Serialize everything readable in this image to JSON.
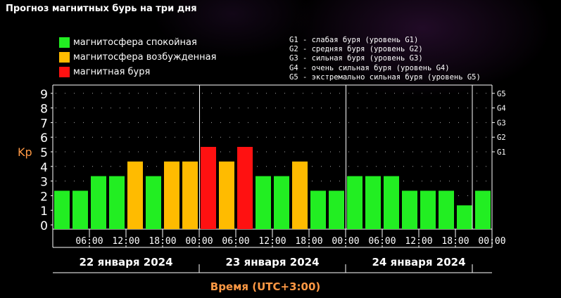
{
  "title": "Прогноз магнитных бурь на три дня",
  "legend": {
    "items": [
      {
        "label": "магнитосфера спокойная",
        "color": "#22ee22"
      },
      {
        "label": "магнитосфера возбужденная",
        "color": "#ffbb00"
      },
      {
        "label": "магнитная буря",
        "color": "#ff1111"
      }
    ],
    "storm_levels": [
      "G1 - слабая буря (уровень G1)",
      "G2 - средняя буря (уровень G2)",
      "G3 - сильная буря (уровень G3)",
      "G4 - очень сильная буря (уровень G4)",
      "G5 - экстремально сильная буря (уровень G5)"
    ]
  },
  "chart_data": {
    "type": "bar",
    "ylabel": "Kp",
    "xlabel": "Время (UTC+3:00)",
    "ylim": [
      0,
      9
    ],
    "yticks": [
      "0",
      "1",
      "2",
      "3",
      "4",
      "5",
      "6",
      "7",
      "8",
      "9"
    ],
    "g_levels": [
      {
        "label": "G1",
        "kp": 5
      },
      {
        "label": "G2",
        "kp": 6
      },
      {
        "label": "G3",
        "kp": 7
      },
      {
        "label": "G4",
        "kp": 8
      },
      {
        "label": "G5",
        "kp": 9
      }
    ],
    "days": [
      "22 января 2024",
      "23 января 2024",
      "24 января 2024"
    ],
    "time_ticks": [
      "06:00",
      "12:00",
      "18:00",
      "00:00"
    ],
    "values": [
      2,
      2,
      3,
      3,
      4,
      3,
      4,
      4,
      5,
      4,
      5,
      3,
      3,
      4,
      2,
      2,
      3,
      3,
      3,
      2,
      2,
      2,
      1,
      2
    ],
    "bar_colors": [
      "#22ee22",
      "#22ee22",
      "#22ee22",
      "#22ee22",
      "#ffbb00",
      "#22ee22",
      "#ffbb00",
      "#ffbb00",
      "#ff1111",
      "#ffbb00",
      "#ff1111",
      "#22ee22",
      "#22ee22",
      "#ffbb00",
      "#22ee22",
      "#22ee22",
      "#22ee22",
      "#22ee22",
      "#22ee22",
      "#22ee22",
      "#22ee22",
      "#22ee22",
      "#22ee22",
      "#22ee22"
    ],
    "grid": true
  },
  "colors": {
    "axis": "#ffffff",
    "ylabel": "#ff9944",
    "xlabel": "#ff9944",
    "grid_dot": "#aaaaaa"
  }
}
